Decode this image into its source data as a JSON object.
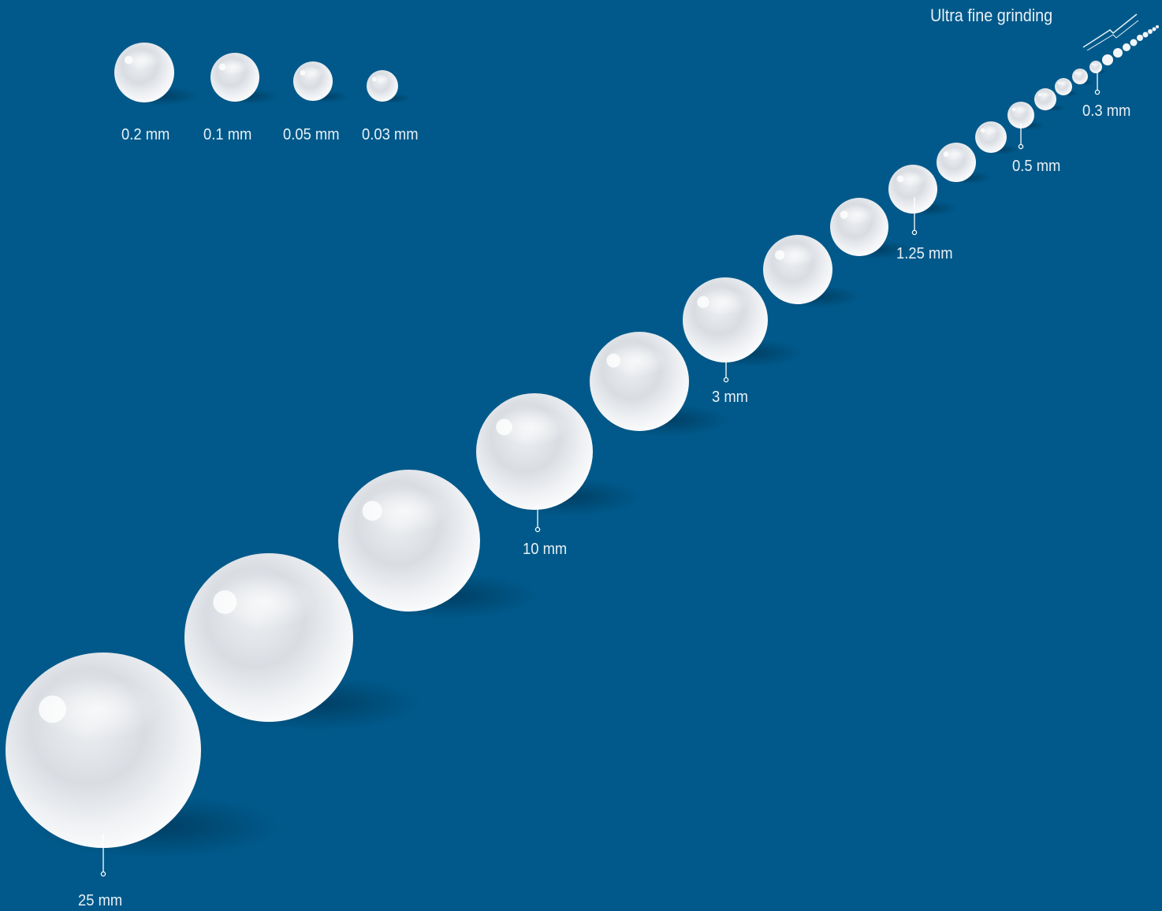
{
  "title": "Ultra fine grinding",
  "labels": {
    "size_25": "25 mm",
    "size_10": "10 mm",
    "size_3": "3 mm",
    "size_1_25": "1.25 mm",
    "size_0_5": "0.5 mm",
    "size_0_3": "0.3 mm"
  },
  "legend": {
    "items": [
      {
        "label": "0.2 mm"
      },
      {
        "label": "0.1 mm"
      },
      {
        "label": "0.05 mm"
      },
      {
        "label": "0.03 mm"
      }
    ]
  },
  "colors": {
    "background": "#00598a",
    "ball": "#f2f4f7",
    "text": "#e8f1f7"
  }
}
